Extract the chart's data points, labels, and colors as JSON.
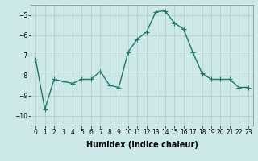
{
  "x": [
    0,
    1,
    2,
    3,
    4,
    5,
    6,
    7,
    8,
    9,
    10,
    11,
    12,
    13,
    14,
    15,
    16,
    17,
    18,
    19,
    20,
    21,
    22,
    23
  ],
  "y": [
    -7.2,
    -9.7,
    -8.2,
    -8.3,
    -8.4,
    -8.2,
    -8.2,
    -7.8,
    -8.5,
    -8.6,
    -6.85,
    -6.2,
    -5.85,
    -4.85,
    -4.8,
    -5.4,
    -5.7,
    -6.85,
    -7.9,
    -8.2,
    -8.2,
    -8.2,
    -8.6,
    -8.6
  ],
  "xlabel": "Humidex (Indice chaleur)",
  "ylim": [
    -10.5,
    -4.5
  ],
  "yticks": [
    -10,
    -9,
    -8,
    -7,
    -6,
    -5
  ],
  "xlim": [
    -0.5,
    23.5
  ],
  "line_color": "#1a7a6a",
  "bg_color": "#cce8e8",
  "grid_color": "#b8c8c8",
  "marker": "+",
  "linewidth": 1.0,
  "markersize": 4,
  "tick_fontsize": 5.5,
  "xlabel_fontsize": 7
}
